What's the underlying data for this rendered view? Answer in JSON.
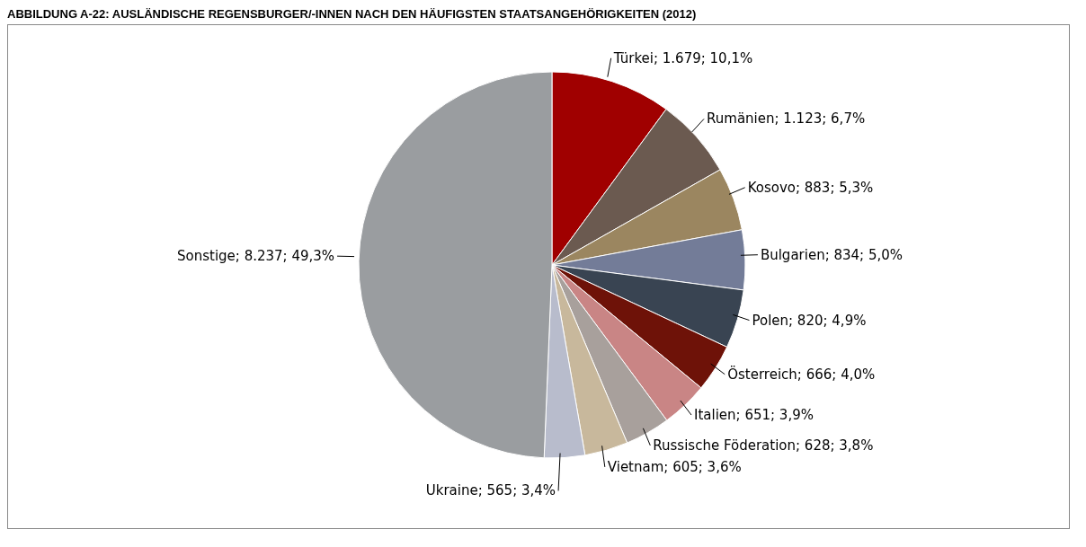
{
  "chart_data": {
    "type": "pie",
    "title": "ABBILDUNG A-22: AUSLÄNDISCHE REGENSBURGER/-INNEN NACH DEN HÄUFIGSTEN STAATSANGEHÖRIGKEITEN (2012)",
    "categories": [
      "Türkei",
      "Rumänien",
      "Kosovo",
      "Bulgarien",
      "Polen",
      "Österreich",
      "Italien",
      "Russische Föderation",
      "Vietnam",
      "Ukraine",
      "Sonstige"
    ],
    "values": [
      1679,
      1123,
      883,
      834,
      820,
      666,
      651,
      628,
      605,
      565,
      8237
    ],
    "value_labels": [
      "1.679; 10,1%",
      "1.123; 6,7%",
      "883; 5,3%",
      "834; 5,0%",
      "820; 4,9%",
      "666; 4,0%",
      "651; 3,9%",
      "628; 3,8%",
      "605; 3,6%",
      "565; 3,4%",
      "8.237; 49,3%"
    ],
    "colors": [
      "#a00000",
      "#6b5a50",
      "#9b8660",
      "#737c98",
      "#394452",
      "#6e1208",
      "#c98585",
      "#a8a09c",
      "#c8b89c",
      "#b8bccc",
      "#9a9da0"
    ],
    "legend": false
  }
}
